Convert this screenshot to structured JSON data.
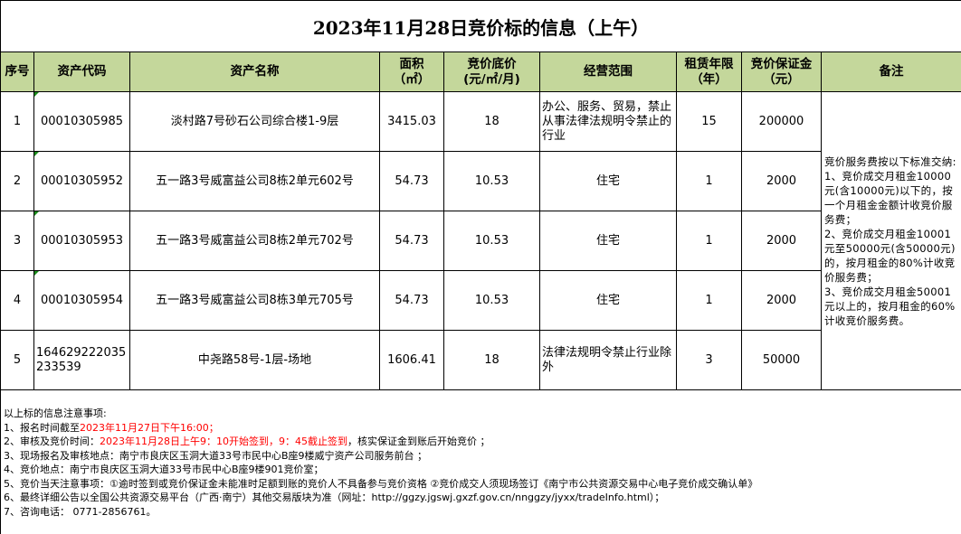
{
  "title": "2023年11月28日竞价标的信息（上午）",
  "headers": {
    "seq": "序号",
    "code": "资产代码",
    "name": "资产名称",
    "area": "面积",
    "area_unit": "（㎡）",
    "price": "竞价底价",
    "price_unit": "(元/㎡/月)",
    "scope": "经营范围",
    "term": "租赁年限",
    "term_unit": "（年）",
    "deposit": "竞价保证金",
    "deposit_unit": "（元）",
    "remark": "备注"
  },
  "rows": [
    {
      "seq": "1",
      "code": "00010305985",
      "name": "淡村路7号砂石公司综合楼1-9层",
      "area": "3415.03",
      "price": "18",
      "scope": "办公、服务、贸易，禁止从事法律法规明令禁止的行业",
      "term": "15",
      "deposit": "200000"
    },
    {
      "seq": "2",
      "code": "00010305952",
      "name": "五一路3号威富益公司8栋2单元602号",
      "area": "54.73",
      "price": "10.53",
      "scope": "住宅",
      "term": "1",
      "deposit": "2000"
    },
    {
      "seq": "3",
      "code": "00010305953",
      "name": "五一路3号威富益公司8栋2单元702号",
      "area": "54.73",
      "price": "10.53",
      "scope": "住宅",
      "term": "1",
      "deposit": "2000"
    },
    {
      "seq": "4",
      "code": "00010305954",
      "name": "五一路3号威富益公司8栋3单元705号",
      "area": "54.73",
      "price": "10.53",
      "scope": "住宅",
      "term": "1",
      "deposit": "2000"
    },
    {
      "seq": "5",
      "code": "164629222035233539",
      "name": "中尧路58号-1层-场地",
      "area": "1606.41",
      "price": "18",
      "scope": "法律法规明令禁止行业除外",
      "term": "3",
      "deposit": "50000"
    }
  ],
  "remark": "竞价服务费按以下标准交纳:\n1、竞价成交月租金10000元(含10000元)以下的，按一个月租金金额计收竞价服务费；\n2、竞价成交月租金10001元至50000元(含50000元)的，按月租金的80%计收竞价服务费；\n3、竞价成交月租金50001元以上的，按月租金的60%计收竞价服务费。",
  "notes": {
    "heading": "以上标的信息注意事项:",
    "n1_prefix": "1、报名时间截至",
    "n1_red": "2023年11月27日下午16:00；",
    "n2_prefix": "2、审核及竞价时间：",
    "n2_red": "2023年11月28日上午9：10开始签到，9：45截止签到",
    "n2_suffix": "，核实保证金到账后开始竞价 ；",
    "n3": "3、现场报名及审核地点：南宁市良庆区玉洞大道33号市民中心B座9楼威宁资产公司服务前台 ；",
    "n4": "4、竞价地点：南宁市良庆区玉洞大道33号市民中心B座9楼901竞价室；",
    "n5": "5、竞价当天注意事项：①逾时签到或竞价保证金未能准时足额到账的竞价人不具备参与竞价资格 ②竞价成交人须现场签订《南宁市公共资源交易中心电子竞价成交确认单》",
    "n6": "6、最终详细公告以全国公共资源交易平台（广西·南宁）其他交易版块为准（网址：http://ggzy.jgswj.gxzf.gov.cn/nnggzy/jyxx/tradeInfo.html）；",
    "n7": "7、咨询电话： 0771-2856761。"
  },
  "colors": {
    "header_bg": "#c4d79b",
    "red": "#ff0000"
  }
}
